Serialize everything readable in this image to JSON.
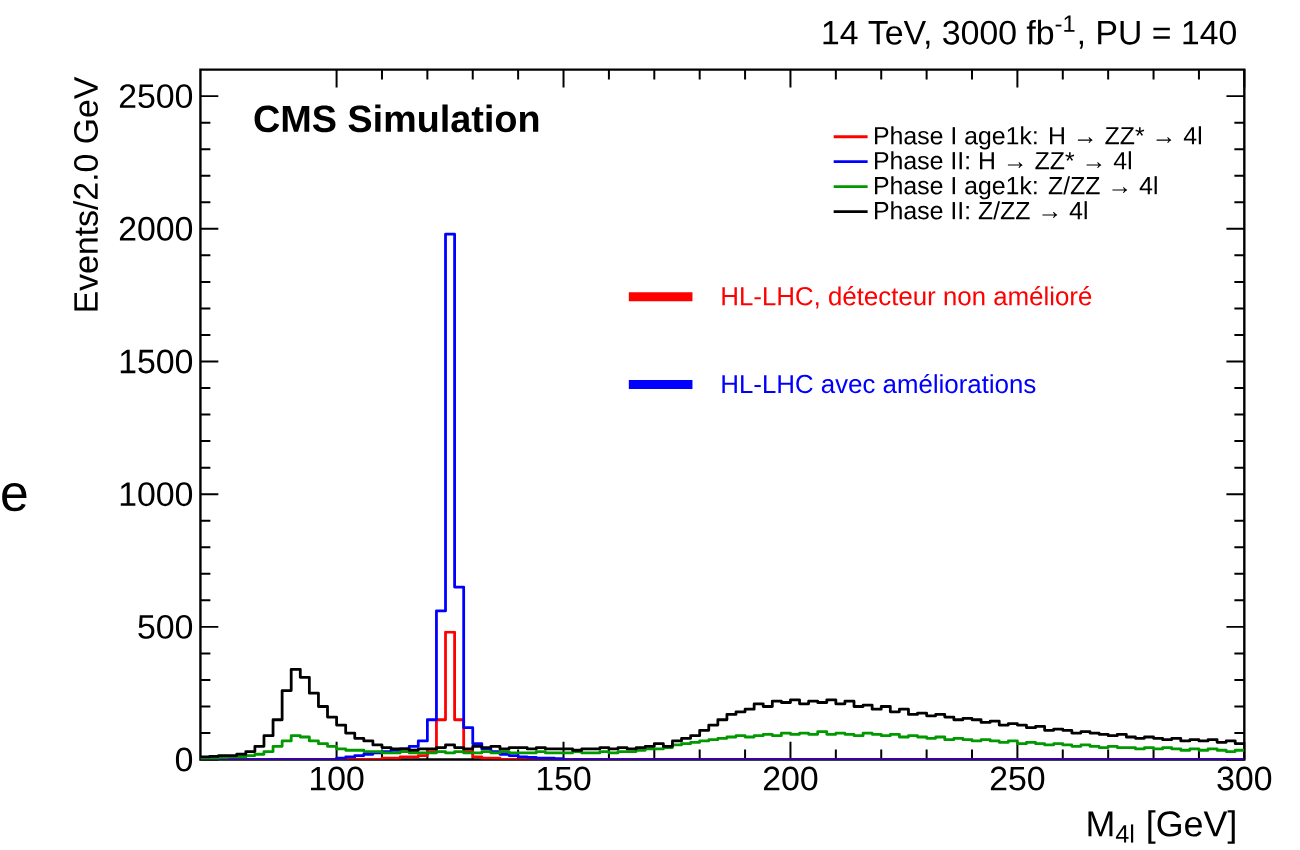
{
  "chart_data": {
    "type": "histogram",
    "title": "14 TeV, 3000 fb$^{-1}$, PU = 140",
    "xlabel": "M$_{4l}$ [GeV]",
    "ylabel": "Events/2.0 GeV",
    "annotations": [
      "**CMS Simulation**",
      "HL-LHC, détecteur non amélioré",
      "HL-LHC avec améliorations",
      "e"
    ],
    "bins": [
      70,
      72,
      74,
      76,
      78,
      80,
      82,
      84,
      86,
      88,
      90,
      92,
      94,
      96,
      98,
      100,
      102,
      104,
      106,
      108,
      110,
      112,
      114,
      116,
      118,
      120,
      122,
      124,
      126,
      128,
      130,
      132,
      134,
      136,
      138,
      140,
      142,
      144,
      146,
      148,
      150,
      152,
      154,
      156,
      158,
      160,
      162,
      164,
      166,
      168,
      170,
      172,
      174,
      176,
      178,
      180,
      182,
      184,
      186,
      188,
      190,
      192,
      194,
      196,
      198,
      200,
      202,
      204,
      206,
      208,
      210,
      212,
      214,
      216,
      218,
      220,
      222,
      224,
      226,
      228,
      230,
      232,
      234,
      236,
      238,
      240,
      242,
      244,
      246,
      248,
      250,
      252,
      254,
      256,
      258,
      260,
      262,
      264,
      266,
      268,
      270,
      272,
      274,
      276,
      278,
      280,
      282,
      284,
      286,
      288,
      290,
      292,
      294,
      296,
      298,
      300
    ],
    "series": [
      {
        "name": "Phase I age1k: H → ZZ* → 4l",
        "color": "#ff0000",
        "values": [
          0,
          0,
          0,
          0,
          0,
          0,
          0,
          0,
          0,
          0,
          0,
          0,
          0,
          0,
          0,
          0,
          0,
          0,
          0,
          0,
          5,
          5,
          10,
          10,
          15,
          30,
          150,
          480,
          150,
          30,
          10,
          5,
          5,
          0,
          0,
          0,
          0,
          0,
          0,
          0,
          0,
          0,
          0,
          0,
          0,
          0,
          0,
          0,
          0,
          0,
          0,
          0,
          0,
          0,
          0,
          0,
          0,
          0,
          0,
          0,
          0,
          0,
          0,
          0,
          0,
          0,
          0,
          0,
          0,
          0,
          0,
          0,
          0,
          0,
          0,
          0,
          0,
          0,
          0,
          0,
          0,
          0,
          0,
          0,
          0,
          0,
          0,
          0,
          0,
          0,
          0,
          0,
          0,
          0,
          0,
          0,
          0,
          0,
          0,
          0,
          0,
          0,
          0,
          0,
          0,
          0,
          0,
          0,
          0,
          0,
          0,
          0,
          0,
          0,
          0
        ]
      },
      {
        "name": "Phase II: H → ZZ* → 4l",
        "color": "#0000ff",
        "values": [
          0,
          0,
          0,
          0,
          0,
          0,
          0,
          0,
          0,
          0,
          0,
          0,
          0,
          0,
          0,
          5,
          10,
          15,
          20,
          25,
          30,
          35,
          40,
          50,
          70,
          150,
          560,
          1980,
          650,
          120,
          60,
          40,
          30,
          20,
          15,
          10,
          8,
          5,
          5,
          3,
          0,
          0,
          0,
          0,
          0,
          0,
          0,
          0,
          0,
          0,
          0,
          0,
          0,
          0,
          0,
          0,
          0,
          0,
          0,
          0,
          0,
          0,
          0,
          0,
          0,
          0,
          0,
          0,
          0,
          0,
          0,
          0,
          0,
          0,
          0,
          0,
          0,
          0,
          0,
          0,
          0,
          0,
          0,
          0,
          0,
          0,
          0,
          0,
          0,
          0,
          0,
          0,
          0,
          0,
          0,
          0,
          0,
          0,
          0,
          0,
          0,
          0,
          0,
          0,
          0,
          0,
          0,
          0,
          0,
          0,
          0,
          0,
          0,
          0,
          0
        ]
      },
      {
        "name": "Phase I age1k: Z/ZZ → 4l",
        "color": "#009900",
        "values": [
          5,
          5,
          8,
          10,
          10,
          15,
          20,
          30,
          50,
          70,
          90,
          85,
          70,
          60,
          50,
          40,
          35,
          35,
          30,
          30,
          25,
          25,
          30,
          25,
          25,
          25,
          30,
          25,
          30,
          25,
          25,
          30,
          25,
          30,
          25,
          25,
          25,
          30,
          25,
          25,
          25,
          30,
          25,
          25,
          30,
          25,
          30,
          30,
          35,
          40,
          40,
          45,
          55,
          60,
          65,
          70,
          75,
          80,
          85,
          90,
          85,
          90,
          95,
          90,
          100,
          95,
          100,
          95,
          105,
          95,
          100,
          95,
          90,
          100,
          95,
          90,
          95,
          85,
          90,
          85,
          80,
          85,
          75,
          80,
          75,
          70,
          75,
          70,
          65,
          70,
          60,
          65,
          60,
          55,
          60,
          55,
          50,
          55,
          50,
          45,
          50,
          45,
          45,
          40,
          45,
          40,
          45,
          40,
          35,
          40,
          35,
          40,
          35,
          30,
          35
        ]
      },
      {
        "name": "Phase II: Z/ZZ → 4l",
        "color": "#000000",
        "values": [
          10,
          12,
          15,
          15,
          20,
          30,
          50,
          90,
          150,
          260,
          340,
          310,
          250,
          200,
          160,
          130,
          100,
          80,
          70,
          55,
          45,
          40,
          40,
          35,
          40,
          40,
          45,
          55,
          45,
          40,
          50,
          45,
          50,
          40,
          45,
          45,
          40,
          45,
          40,
          40,
          40,
          35,
          40,
          40,
          45,
          40,
          45,
          40,
          45,
          50,
          60,
          50,
          70,
          80,
          90,
          110,
          130,
          150,
          170,
          180,
          190,
          210,
          200,
          220,
          215,
          225,
          210,
          220,
          215,
          225,
          210,
          220,
          200,
          205,
          190,
          200,
          180,
          190,
          170,
          175,
          165,
          170,
          160,
          150,
          155,
          150,
          140,
          145,
          130,
          135,
          130,
          120,
          125,
          110,
          115,
          110,
          100,
          105,
          100,
          95,
          90,
          95,
          85,
          80,
          85,
          80,
          75,
          80,
          70,
          75,
          70,
          75,
          65,
          70,
          60
        ]
      }
    ],
    "xlim": [
      70,
      300
    ],
    "xticks": [
      100,
      150,
      200,
      250,
      300
    ],
    "ylim": [
      0,
      2600
    ],
    "yticks": [
      0,
      500,
      1000,
      1500,
      2000,
      2500
    ],
    "legend": "top right"
  }
}
